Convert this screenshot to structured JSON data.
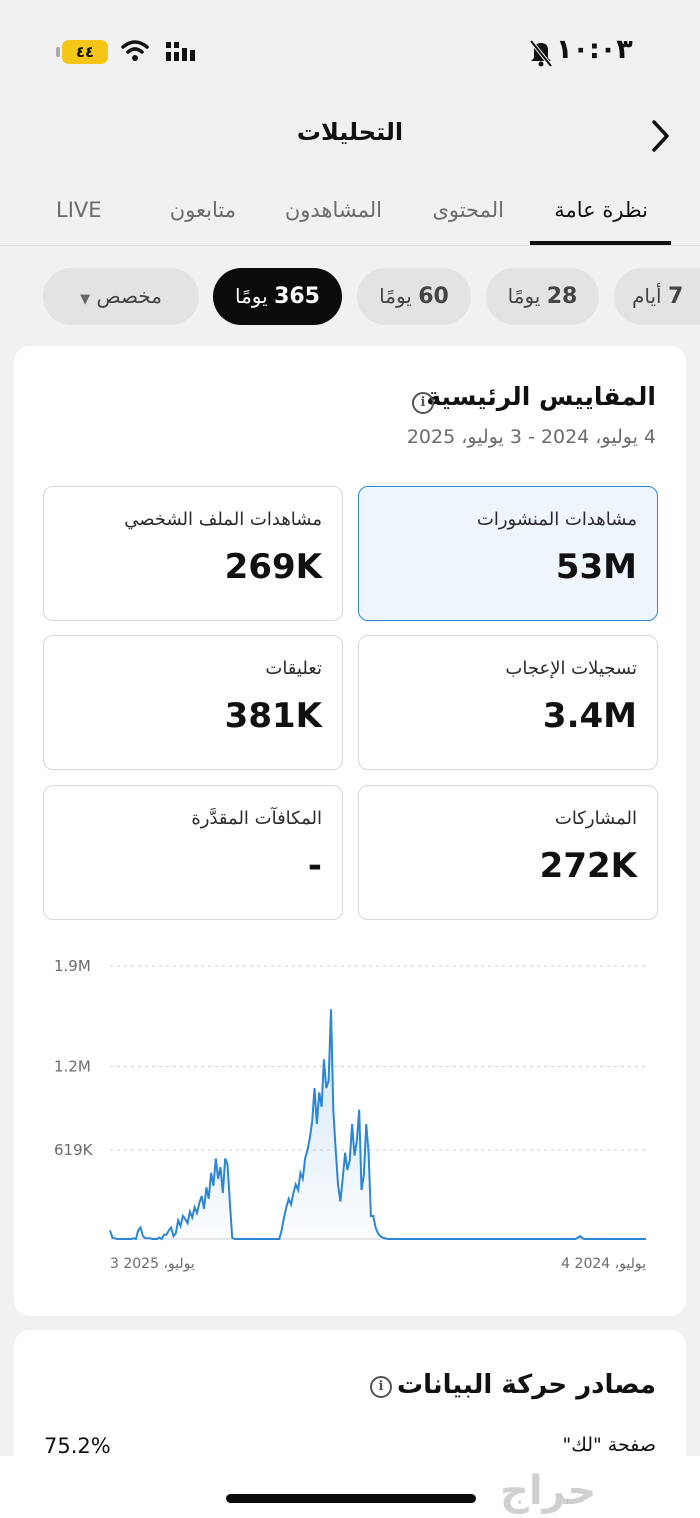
{
  "status_bar": {
    "battery": "٤٤",
    "time": "١٠:٠٣",
    "icons": [
      "wifi-icon",
      "signal-icon",
      "bell-slash-icon"
    ]
  },
  "header": {
    "title": "التحليلات",
    "back_icon": "chevron-right-icon"
  },
  "tabs": [
    {
      "label": "نظرة عامة",
      "active": true
    },
    {
      "label": "المحتوى",
      "active": false
    },
    {
      "label": "المشاهدون",
      "active": false
    },
    {
      "label": "متابعون",
      "active": false
    },
    {
      "label": "LIVE",
      "active": false
    }
  ],
  "ranges": [
    {
      "num": "7",
      "unit": "أيام",
      "selected": false
    },
    {
      "num": "28",
      "unit": "يومًا",
      "selected": false
    },
    {
      "num": "60",
      "unit": "يومًا",
      "selected": false
    },
    {
      "num": "365",
      "unit": "يومًا",
      "selected": true
    },
    {
      "num": "",
      "unit": "مخصص",
      "selected": false
    }
  ],
  "metrics_card": {
    "title": "المقاييس الرئيسية",
    "date_range": "4 يوليو، 2024 - 3 يوليو، 2025",
    "metrics": [
      {
        "label": "مشاهدات المنشورات",
        "value": "53M",
        "selected": true
      },
      {
        "label": "مشاهدات الملف الشخصي",
        "value": "269K",
        "selected": false
      },
      {
        "label": "تسجيلات الإعجاب",
        "value": "3.4M",
        "selected": false
      },
      {
        "label": "تعليقات",
        "value": "381K",
        "selected": false
      },
      {
        "label": "المشاركات",
        "value": "272K",
        "selected": false
      },
      {
        "label": "المكافآت المقدَّرة",
        "value": "-",
        "selected": false
      }
    ]
  },
  "chart_data": {
    "type": "area",
    "y_ticks": [
      "1.9M",
      "1.2M",
      "619K"
    ],
    "y_tick_values": [
      1900000,
      1200000,
      619000
    ],
    "ylim": [
      0,
      1900000
    ],
    "x_labels": {
      "left": "3 2025 ،يوليو",
      "right": "يوليو، 2024 4"
    },
    "x_direction": "rtl",
    "color": "#2c86d4",
    "values": [
      60000,
      10000,
      5000,
      0,
      0,
      0,
      0,
      0,
      0,
      0,
      5000,
      0,
      60000,
      80000,
      20000,
      5000,
      5000,
      5000,
      0,
      0,
      0,
      10000,
      0,
      30000,
      30000,
      60000,
      80000,
      20000,
      40000,
      130000,
      90000,
      160000,
      140000,
      110000,
      190000,
      150000,
      220000,
      180000,
      250000,
      300000,
      210000,
      360000,
      280000,
      460000,
      370000,
      560000,
      420000,
      500000,
      320000,
      560000,
      520000,
      250000,
      10000,
      0,
      0,
      0,
      0,
      0,
      0,
      0,
      0,
      0,
      0,
      0,
      0,
      0,
      0,
      0,
      0,
      0,
      0,
      0,
      0,
      60000,
      150000,
      220000,
      280000,
      240000,
      320000,
      380000,
      340000,
      460000,
      420000,
      560000,
      620000,
      700000,
      820000,
      1050000,
      800000,
      1020000,
      920000,
      1250000,
      1050000,
      1100000,
      1600000,
      900000,
      620000,
      380000,
      260000,
      420000,
      600000,
      480000,
      550000,
      800000,
      580000,
      680000,
      900000,
      340000,
      450000,
      800000,
      600000,
      160000,
      160000,
      80000,
      40000,
      20000,
      10000,
      5000,
      0,
      0,
      0,
      0,
      0,
      0,
      0,
      0,
      0,
      0,
      0,
      0,
      0,
      0,
      0,
      0,
      0,
      0,
      0,
      0,
      0,
      0,
      0,
      0,
      0,
      0,
      0,
      0,
      0,
      0,
      0,
      0,
      0,
      0,
      0,
      0,
      0,
      0,
      0,
      0,
      0,
      0,
      0,
      0,
      0,
      0,
      0,
      0,
      0,
      0,
      0,
      0,
      0,
      0,
      0,
      0,
      0,
      0,
      0,
      0,
      0,
      0,
      0,
      0,
      0,
      0,
      0,
      0,
      0,
      0,
      0,
      0,
      0,
      0,
      0,
      0,
      0,
      0,
      0,
      0,
      0,
      10000,
      20000,
      5000,
      0,
      0,
      0,
      0,
      0,
      0,
      0,
      0,
      0,
      0,
      0,
      0,
      0,
      0,
      0,
      0,
      0,
      0,
      0,
      0,
      0,
      0,
      0,
      0,
      0,
      0,
      0
    ]
  },
  "traffic_card": {
    "title": "مصادر حركة البيانات",
    "source_label": "صفحة \"لك\"",
    "source_value": "75.2%"
  },
  "watermark": "حراج"
}
